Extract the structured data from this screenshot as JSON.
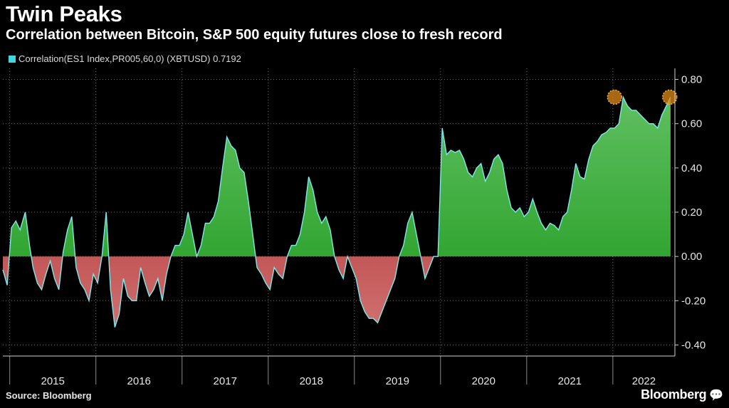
{
  "header": {
    "title": "Twin Peaks",
    "subtitle": "Correlation between Bitcoin, S&P 500 equity futures close to fresh record"
  },
  "legend": {
    "label": "Correlation(ES1 Index,PR005,60,0) (XBTUSD) 0.7192",
    "color": "#3fd8e0"
  },
  "footer": {
    "source": "Source: Bloomberg",
    "brand": "Bloomberg",
    "brand_icon": "chat-bubble-icon"
  },
  "colors": {
    "background": "#000000",
    "line": "#7fe8ec",
    "positive_fill": "#1e9a1e",
    "negative_fill": "#a51f1f",
    "highlight": "#e08a1a"
  },
  "chart_data": {
    "type": "area",
    "title": "Twin Peaks",
    "subtitle": "Correlation between Bitcoin, S&P 500 equity futures close to fresh record",
    "series": [
      {
        "name": "Correlation(ES1 Index,PR005,60,0) (XBTUSD)",
        "last_value": 0.7192
      }
    ],
    "x_tick_labels": [
      "2015",
      "2016",
      "2017",
      "2018",
      "2019",
      "2020",
      "2021",
      "2022"
    ],
    "y_ticks": [
      -0.4,
      -0.2,
      0.0,
      0.2,
      0.4,
      0.6,
      0.8
    ],
    "y_tick_labels": [
      "-0.40",
      "-0.20",
      "0.00",
      "0.20",
      "0.40",
      "0.60",
      "0.80"
    ],
    "ylim": [
      -0.45,
      0.85
    ],
    "xlim": [
      2014.92,
      2022.72
    ],
    "y_axis_position": "right",
    "grid": "dotted",
    "legend_position": "top-left",
    "highlights": [
      {
        "x": 2022.02,
        "y": 0.72
      },
      {
        "x": 2022.66,
        "y": 0.72
      }
    ],
    "x": [
      2014.92,
      2014.97,
      2015.02,
      2015.07,
      2015.12,
      2015.18,
      2015.23,
      2015.27,
      2015.32,
      2015.37,
      2015.42,
      2015.47,
      2015.52,
      2015.57,
      2015.62,
      2015.67,
      2015.72,
      2015.77,
      2015.82,
      2015.87,
      2015.92,
      2015.97,
      2016.02,
      2016.07,
      2016.12,
      2016.17,
      2016.22,
      2016.27,
      2016.32,
      2016.37,
      2016.42,
      2016.47,
      2016.52,
      2016.57,
      2016.62,
      2016.67,
      2016.72,
      2016.77,
      2016.82,
      2016.87,
      2016.92,
      2016.97,
      2017.02,
      2017.07,
      2017.12,
      2017.17,
      2017.22,
      2017.27,
      2017.32,
      2017.37,
      2017.42,
      2017.47,
      2017.52,
      2017.57,
      2017.62,
      2017.67,
      2017.72,
      2017.77,
      2017.82,
      2017.87,
      2017.92,
      2017.97,
      2018.02,
      2018.07,
      2018.12,
      2018.17,
      2018.22,
      2018.27,
      2018.32,
      2018.37,
      2018.42,
      2018.47,
      2018.52,
      2018.57,
      2018.62,
      2018.67,
      2018.72,
      2018.77,
      2018.82,
      2018.87,
      2018.92,
      2018.97,
      2019.02,
      2019.07,
      2019.12,
      2019.17,
      2019.22,
      2019.27,
      2019.32,
      2019.37,
      2019.42,
      2019.47,
      2019.52,
      2019.57,
      2019.62,
      2019.67,
      2019.72,
      2019.77,
      2019.82,
      2019.87,
      2019.92,
      2019.97,
      2020.02,
      2020.07,
      2020.12,
      2020.17,
      2020.22,
      2020.27,
      2020.32,
      2020.37,
      2020.42,
      2020.47,
      2020.52,
      2020.57,
      2020.62,
      2020.67,
      2020.72,
      2020.77,
      2020.82,
      2020.87,
      2020.92,
      2020.97,
      2021.02,
      2021.07,
      2021.12,
      2021.17,
      2021.22,
      2021.27,
      2021.32,
      2021.37,
      2021.42,
      2021.47,
      2021.52,
      2021.57,
      2021.62,
      2021.67,
      2021.72,
      2021.77,
      2021.82,
      2021.87,
      2021.92,
      2021.97,
      2022.02,
      2022.07,
      2022.12,
      2022.17,
      2022.22,
      2022.27,
      2022.32,
      2022.37,
      2022.42,
      2022.47,
      2022.52,
      2022.57,
      2022.62,
      2022.67
    ],
    "values": [
      -0.06,
      -0.13,
      0.13,
      0.16,
      0.12,
      0.2,
      0.05,
      -0.05,
      -0.12,
      -0.15,
      -0.08,
      -0.02,
      -0.1,
      -0.15,
      0.02,
      0.12,
      0.18,
      -0.05,
      -0.12,
      -0.15,
      -0.2,
      -0.08,
      -0.12,
      0.0,
      0.2,
      -0.15,
      -0.32,
      -0.26,
      -0.1,
      -0.18,
      -0.2,
      -0.2,
      -0.05,
      -0.12,
      -0.18,
      -0.15,
      -0.1,
      -0.2,
      -0.08,
      0.0,
      0.05,
      0.05,
      0.1,
      0.2,
      0.1,
      0.0,
      0.05,
      0.15,
      0.15,
      0.18,
      0.25,
      0.4,
      0.54,
      0.5,
      0.48,
      0.4,
      0.38,
      0.25,
      0.1,
      -0.05,
      -0.08,
      -0.12,
      -0.15,
      -0.05,
      -0.08,
      -0.1,
      0.0,
      0.05,
      0.05,
      0.1,
      0.2,
      0.36,
      0.3,
      0.2,
      0.15,
      0.18,
      0.12,
      0.0,
      -0.06,
      -0.1,
      0.0,
      -0.05,
      -0.1,
      -0.2,
      -0.25,
      -0.28,
      -0.28,
      -0.3,
      -0.25,
      -0.2,
      -0.15,
      -0.1,
      0.0,
      0.05,
      0.15,
      0.2,
      0.1,
      0.0,
      -0.1,
      -0.05,
      0.0,
      0.0,
      0.58,
      0.46,
      0.48,
      0.47,
      0.48,
      0.44,
      0.38,
      0.36,
      0.4,
      0.42,
      0.34,
      0.38,
      0.44,
      0.46,
      0.42,
      0.3,
      0.22,
      0.2,
      0.22,
      0.18,
      0.2,
      0.26,
      0.2,
      0.15,
      0.12,
      0.15,
      0.14,
      0.12,
      0.18,
      0.2,
      0.3,
      0.42,
      0.36,
      0.35,
      0.44,
      0.5,
      0.52,
      0.55,
      0.56,
      0.58,
      0.58,
      0.6,
      0.72,
      0.68,
      0.66,
      0.66,
      0.64,
      0.62,
      0.6,
      0.6,
      0.58,
      0.64,
      0.68,
      0.72
    ]
  }
}
